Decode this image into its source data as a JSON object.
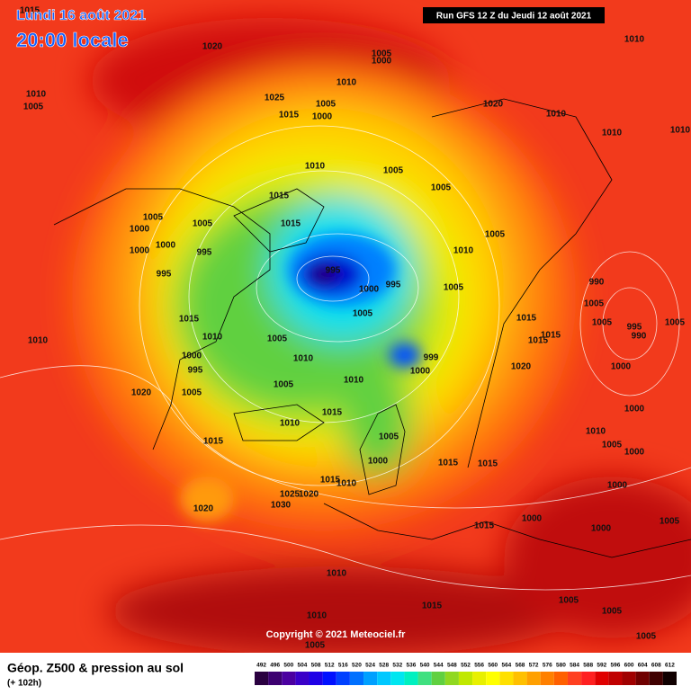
{
  "header": {
    "date": "Lundi 16 août 2021",
    "time": "20:00 locale",
    "run": "Run GFS 12 Z du Jeudi 12 août 2021"
  },
  "isobar_labels": [
    "1015",
    "1020",
    "1010",
    "1005",
    "1005",
    "1000",
    "1010",
    "1025",
    "1015",
    "1005",
    "1000",
    "1020",
    "1010",
    "1010",
    "1010",
    "1010",
    "1010",
    "1005",
    "1005",
    "1015",
    "1015",
    "1005",
    "1005",
    "1000",
    "1000",
    "995",
    "1000",
    "995",
    "1010",
    "1005",
    "995",
    "1000",
    "995",
    "1005",
    "1005",
    "990",
    "1005",
    "1005",
    "995",
    "990",
    "1005",
    "1015",
    "1015",
    "1015",
    "1015",
    "1010",
    "1005",
    "999",
    "1000",
    "1000",
    "995",
    "1010",
    "1010",
    "1010",
    "1020",
    "1005",
    "1005",
    "1020",
    "1000",
    "1000",
    "1015",
    "1010",
    "1005",
    "1010",
    "1015",
    "1005",
    "1000",
    "1000",
    "1015",
    "1015",
    "1015",
    "1010",
    "1025",
    "1020",
    "1030",
    "1020",
    "1000",
    "1000",
    "1005",
    "1015",
    "1000",
    "1010",
    "1015",
    "1010",
    "1005",
    "1005",
    "1005",
    "1005"
  ],
  "copyright": "Copyright © 2021 Meteociel.fr",
  "footer": {
    "title": "Géop. Z500 & pression au sol",
    "lead": "(+ 102h)"
  },
  "legend": {
    "labels": [
      492,
      496,
      500,
      504,
      508,
      512,
      516,
      520,
      524,
      528,
      532,
      536,
      540,
      544,
      548,
      552,
      556,
      560,
      564,
      568,
      572,
      576,
      580,
      584,
      588,
      592,
      596,
      600,
      604,
      608,
      612
    ],
    "colors": [
      "#2a0040",
      "#3c0070",
      "#4b00a0",
      "#3a00c8",
      "#1e00e6",
      "#0010ff",
      "#0040ff",
      "#0070ff",
      "#00a0ff",
      "#00c8ff",
      "#00e6f0",
      "#00f0c0",
      "#40e080",
      "#60d040",
      "#90d820",
      "#c0e800",
      "#e8f000",
      "#ffff00",
      "#ffe000",
      "#ffc000",
      "#ffa000",
      "#ff8000",
      "#ff6000",
      "#ff4020",
      "#ff2020",
      "#e00000",
      "#c00000",
      "#a00000",
      "#700000",
      "#400000",
      "#100000"
    ]
  }
}
